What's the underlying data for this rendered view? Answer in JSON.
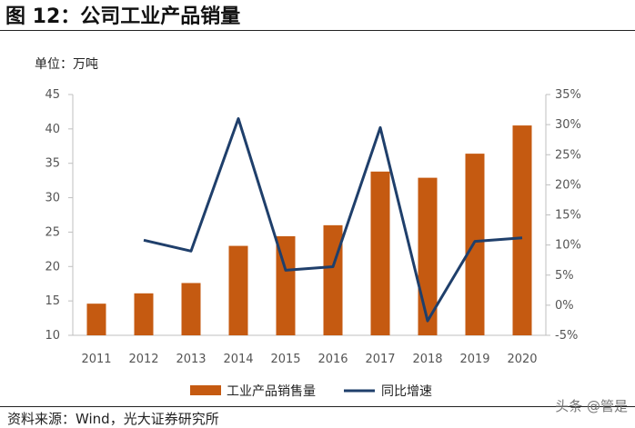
{
  "figure_title": "图 12：公司工业产品销量",
  "unit_label": "单位：万吨",
  "source": "资料来源：Wind，光大证券研究所",
  "watermark": "头条 @管是",
  "colors": {
    "bar": "#C55A11",
    "line": "#1F3F6B"
  },
  "chart_data": {
    "type": "bar",
    "categories": [
      "2011",
      "2012",
      "2013",
      "2014",
      "2015",
      "2016",
      "2017",
      "2018",
      "2019",
      "2020"
    ],
    "series": [
      {
        "name": "工业产品销售量",
        "type": "bar",
        "axis": "left",
        "values": [
          14.6,
          16.1,
          17.6,
          23.0,
          24.4,
          26.0,
          33.8,
          32.9,
          36.4,
          40.5
        ]
      },
      {
        "name": "同比增速",
        "type": "line",
        "axis": "right",
        "values": [
          null,
          10.8,
          9.0,
          31.0,
          5.8,
          6.4,
          29.5,
          -2.6,
          10.6,
          11.2
        ]
      }
    ],
    "y_left": {
      "min": 10,
      "max": 45,
      "ticks": [
        "10",
        "15",
        "20",
        "25",
        "30",
        "35",
        "40",
        "45"
      ]
    },
    "y_right": {
      "min": -5,
      "max": 35,
      "ticks": [
        "-5%",
        "0%",
        "5%",
        "10%",
        "15%",
        "20%",
        "25%",
        "30%",
        "35%"
      ]
    },
    "grid": false,
    "legend_position": "bottom"
  }
}
